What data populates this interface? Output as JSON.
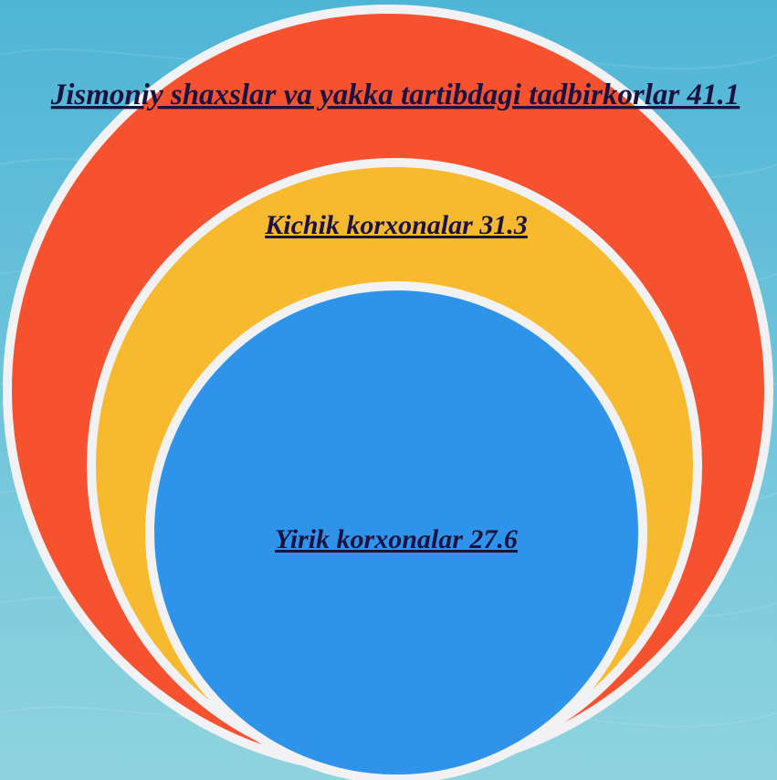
{
  "colors": {
    "background_top": "#4fb5d6",
    "background_bottom": "#8fd3df",
    "ring_outline": "#f2f2f5",
    "outer": "#f65230",
    "middle": "#f7b92e",
    "inner": "#2f94e9",
    "label": "#1a1240"
  },
  "rings": [
    {
      "label": "Jismoniy shaxslar va yakka tartibdagi tadbirkorlar 41.1",
      "value": 41.1
    },
    {
      "label": "Kichik korxonalar 31.3",
      "value": 31.3
    },
    {
      "label": "Yirik korxonalar 27.6",
      "value": 27.6
    }
  ]
}
